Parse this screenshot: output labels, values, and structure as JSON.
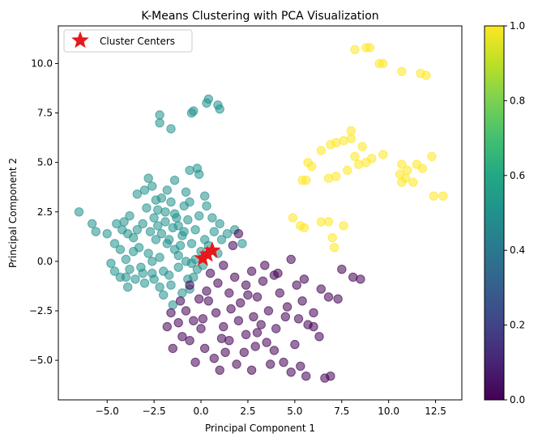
{
  "chart_data": {
    "type": "scatter",
    "title": "K-Means Clustering with PCA Visualization",
    "xlabel": "Principal Component 1",
    "ylabel": "Principal Component 2",
    "xlim": [
      -7.6,
      13.9
    ],
    "ylim": [
      -7.0,
      11.9
    ],
    "xticks": [
      -5.0,
      -2.5,
      0.0,
      2.5,
      5.0,
      7.5,
      10.0,
      12.5
    ],
    "xtick_labels": [
      "−5.0",
      "−2.5",
      "0.0",
      "2.5",
      "5.0",
      "7.5",
      "10.0",
      "12.5"
    ],
    "yticks": [
      -5.0,
      -2.5,
      0.0,
      2.5,
      5.0,
      7.5,
      10.0
    ],
    "ytick_labels": [
      "−5.0",
      "−2.5",
      "0.0",
      "2.5",
      "5.0",
      "7.5",
      "10.0"
    ],
    "grid": false,
    "legend": {
      "placement": "top-left",
      "entries": [
        "Cluster Centers"
      ]
    },
    "colorbar": {
      "colormap": "viridis",
      "range": [
        0.0,
        1.0
      ],
      "ticks": [
        0.0,
        0.2,
        0.4,
        0.6,
        0.8,
        1.0
      ],
      "tick_labels": [
        "0.0",
        "0.2",
        "0.4",
        "0.6",
        "0.8",
        "1.0"
      ]
    },
    "marker_alpha": 0.55,
    "series": [
      {
        "cluster_value": 0.5,
        "color": "#21918c",
        "points": [
          [
            -6.5,
            2.5
          ],
          [
            -5.8,
            1.9
          ],
          [
            -5.6,
            1.5
          ],
          [
            -4.5,
            1.9
          ],
          [
            -4.2,
            1.6
          ],
          [
            -3.9,
            1.4
          ],
          [
            -3.6,
            0.5
          ],
          [
            -3.4,
            3.4
          ],
          [
            -3.0,
            3.6
          ],
          [
            -2.8,
            4.2
          ],
          [
            -2.6,
            3.8
          ],
          [
            -2.3,
            2.6
          ],
          [
            -2.1,
            3.2
          ],
          [
            -1.9,
            2.0
          ],
          [
            -1.6,
            3.0
          ],
          [
            -1.4,
            2.4
          ],
          [
            -1.2,
            1.8
          ],
          [
            -0.8,
            3.5
          ],
          [
            -0.6,
            4.6
          ],
          [
            -0.2,
            4.7
          ],
          [
            -0.1,
            4.4
          ],
          [
            0.2,
            3.3
          ],
          [
            0.3,
            2.8
          ],
          [
            -2.2,
            7.4
          ],
          [
            -2.2,
            7.0
          ],
          [
            -1.6,
            6.7
          ],
          [
            -0.5,
            7.5
          ],
          [
            -0.4,
            7.6
          ],
          [
            0.3,
            8.0
          ],
          [
            0.4,
            8.2
          ],
          [
            0.9,
            7.9
          ],
          [
            1.0,
            7.7
          ],
          [
            -4.6,
            0.9
          ],
          [
            -4.3,
            0.6
          ],
          [
            -4.0,
            0.1
          ],
          [
            -3.8,
            -0.4
          ],
          [
            -4.6,
            -0.5
          ],
          [
            -4.3,
            -0.8
          ],
          [
            -3.9,
            -1.3
          ],
          [
            -3.5,
            -0.9
          ],
          [
            -3.2,
            -0.3
          ],
          [
            -3.0,
            -1.1
          ],
          [
            -2.8,
            0.4
          ],
          [
            -2.6,
            -0.6
          ],
          [
            -2.4,
            1.1
          ],
          [
            -2.2,
            0.2
          ],
          [
            -2.0,
            -0.5
          ],
          [
            -1.8,
            0.9
          ],
          [
            -1.6,
            -1.2
          ],
          [
            -1.4,
            0.6
          ],
          [
            -1.2,
            -0.3
          ],
          [
            -1.0,
            1.3
          ],
          [
            -0.8,
            0.0
          ],
          [
            -0.6,
            -1.4
          ],
          [
            -0.4,
            -0.8
          ],
          [
            -0.2,
            -0.4
          ],
          [
            0.0,
            0.5
          ],
          [
            0.2,
            1.1
          ],
          [
            0.4,
            0.8
          ],
          [
            0.7,
            1.5
          ],
          [
            1.0,
            1.9
          ],
          [
            1.4,
            1.4
          ],
          [
            1.8,
            1.6
          ],
          [
            2.2,
            0.9
          ],
          [
            -3.1,
            1.9
          ],
          [
            -2.9,
            2.7
          ],
          [
            -2.7,
            1.5
          ],
          [
            -2.5,
            2.2
          ],
          [
            -2.3,
            1.8
          ],
          [
            -2.1,
            1.4
          ],
          [
            -1.9,
            2.5
          ],
          [
            -1.7,
            1.1
          ],
          [
            -1.5,
            1.7
          ],
          [
            -1.3,
            2.2
          ],
          [
            -1.1,
            0.8
          ],
          [
            -0.9,
            1.5
          ],
          [
            -0.7,
            2.1
          ],
          [
            -0.5,
            0.9
          ],
          [
            -0.3,
            1.6
          ],
          [
            -0.1,
            2.3
          ],
          [
            -2.0,
            -1.7
          ],
          [
            -1.5,
            -2.2
          ],
          [
            -1.0,
            -1.6
          ],
          [
            -0.7,
            -0.9
          ],
          [
            -3.3,
            0.7
          ],
          [
            -3.6,
            1.2
          ],
          [
            -3.8,
            2.3
          ],
          [
            -4.1,
            2.0
          ],
          [
            -5.0,
            1.4
          ],
          [
            -4.8,
            -0.1
          ],
          [
            -0.9,
            2.8
          ],
          [
            -1.8,
            3.6
          ],
          [
            -2.4,
            3.1
          ],
          [
            0.6,
            2.2
          ],
          [
            -1.2,
            0.3
          ],
          [
            -2.5,
            -0.9
          ],
          [
            -3.1,
            -0.6
          ],
          [
            -0.3,
            0.1
          ],
          [
            0.1,
            -0.2
          ],
          [
            -0.6,
            3.0
          ],
          [
            -1.4,
            4.1
          ],
          [
            -2.6,
            0.0
          ],
          [
            -3.4,
            1.6
          ],
          [
            -4.0,
            -0.8
          ],
          [
            0.9,
            0.4
          ],
          [
            1.1,
            1.1
          ],
          [
            -0.5,
            -0.1
          ],
          [
            -1.7,
            -0.7
          ],
          [
            -2.2,
            -1.3
          ]
        ]
      },
      {
        "cluster_value": 0.0,
        "color": "#440154",
        "points": [
          [
            0.5,
            -0.6
          ],
          [
            0.9,
            -1.1
          ],
          [
            1.2,
            -0.2
          ],
          [
            1.5,
            -1.6
          ],
          [
            1.8,
            -0.8
          ],
          [
            2.1,
            -2.1
          ],
          [
            2.4,
            -1.2
          ],
          [
            2.7,
            -0.5
          ],
          [
            3.0,
            -1.8
          ],
          [
            3.3,
            -1.0
          ],
          [
            3.6,
            -2.5
          ],
          [
            3.9,
            -0.7
          ],
          [
            4.2,
            -1.6
          ],
          [
            4.5,
            -2.8
          ],
          [
            4.8,
            0.1
          ],
          [
            5.1,
            -1.2
          ],
          [
            5.4,
            -2.0
          ],
          [
            5.7,
            -3.2
          ],
          [
            6.0,
            -2.6
          ],
          [
            6.4,
            -1.4
          ],
          [
            6.8,
            -1.8
          ],
          [
            7.3,
            -1.9
          ],
          [
            7.5,
            -0.4
          ],
          [
            8.1,
            -0.8
          ],
          [
            8.5,
            -0.9
          ],
          [
            -1.6,
            -2.6
          ],
          [
            -1.8,
            -3.3
          ],
          [
            -1.5,
            -4.4
          ],
          [
            -1.0,
            -3.8
          ],
          [
            -0.6,
            -4.0
          ],
          [
            -0.3,
            -5.1
          ],
          [
            0.2,
            -4.4
          ],
          [
            0.7,
            -4.9
          ],
          [
            1.0,
            -5.5
          ],
          [
            1.5,
            -4.0
          ],
          [
            1.9,
            -5.2
          ],
          [
            2.3,
            -4.6
          ],
          [
            2.7,
            -5.5
          ],
          [
            3.0,
            -3.6
          ],
          [
            3.5,
            -4.1
          ],
          [
            3.9,
            -4.5
          ],
          [
            4.4,
            -5.1
          ],
          [
            4.8,
            -5.6
          ],
          [
            5.3,
            -5.3
          ],
          [
            5.6,
            -5.8
          ],
          [
            6.3,
            -3.8
          ],
          [
            6.6,
            -5.9
          ],
          [
            6.9,
            -5.8
          ],
          [
            5.0,
            -4.2
          ],
          [
            -0.8,
            -2.5
          ],
          [
            -0.4,
            -3.0
          ],
          [
            0.1,
            -2.9
          ],
          [
            0.4,
            -2.0
          ],
          [
            0.8,
            -2.6
          ],
          [
            1.2,
            -3.3
          ],
          [
            1.6,
            -2.4
          ],
          [
            2.0,
            -3.0
          ],
          [
            2.4,
            -3.7
          ],
          [
            2.8,
            -2.8
          ],
          [
            3.2,
            -3.2
          ],
          [
            4.0,
            -3.4
          ],
          [
            4.6,
            -2.3
          ],
          [
            5.2,
            -2.9
          ],
          [
            6.0,
            -3.3
          ],
          [
            0.3,
            -1.5
          ],
          [
            -0.1,
            -1.9
          ],
          [
            2.0,
            1.4
          ],
          [
            1.7,
            0.8
          ],
          [
            0.0,
            -3.4
          ],
          [
            -1.1,
            -2.0
          ],
          [
            -0.6,
            -1.2
          ],
          [
            1.3,
            -4.6
          ],
          [
            2.5,
            -1.7
          ],
          [
            3.4,
            -0.2
          ],
          [
            4.1,
            -0.6
          ],
          [
            5.5,
            -0.9
          ],
          [
            1.1,
            -3.9
          ],
          [
            2.9,
            -4.3
          ],
          [
            3.7,
            -5.2
          ],
          [
            -1.2,
            -3.1
          ]
        ]
      },
      {
        "cluster_value": 1.0,
        "color": "#fde725",
        "points": [
          [
            7.2,
            4.3
          ],
          [
            7.8,
            4.6
          ],
          [
            8.4,
            4.9
          ],
          [
            8.8,
            5.0
          ],
          [
            9.1,
            5.2
          ],
          [
            10.6,
            4.4
          ],
          [
            10.9,
            4.2
          ],
          [
            11.3,
            4.0
          ],
          [
            11.8,
            4.7
          ],
          [
            12.3,
            5.3
          ],
          [
            12.4,
            3.3
          ],
          [
            12.9,
            3.3
          ],
          [
            8.2,
            10.7
          ],
          [
            8.8,
            10.8
          ],
          [
            9.0,
            10.8
          ],
          [
            9.5,
            10.0
          ],
          [
            9.7,
            10.0
          ],
          [
            10.7,
            9.6
          ],
          [
            11.7,
            9.5
          ],
          [
            12.0,
            9.4
          ],
          [
            8.0,
            6.6
          ],
          [
            8.0,
            6.2
          ],
          [
            7.6,
            6.1
          ],
          [
            7.2,
            6.0
          ],
          [
            6.9,
            5.9
          ],
          [
            6.4,
            5.6
          ],
          [
            5.7,
            5.0
          ],
          [
            5.9,
            4.8
          ],
          [
            6.8,
            4.2
          ],
          [
            5.4,
            4.1
          ],
          [
            5.6,
            4.1
          ],
          [
            4.9,
            2.2
          ],
          [
            5.3,
            1.8
          ],
          [
            5.5,
            1.7
          ],
          [
            6.4,
            2.0
          ],
          [
            6.8,
            2.0
          ],
          [
            7.0,
            1.2
          ],
          [
            7.1,
            0.7
          ],
          [
            7.6,
            1.8
          ],
          [
            8.2,
            5.3
          ],
          [
            8.6,
            5.8
          ],
          [
            9.7,
            5.4
          ],
          [
            10.7,
            4.9
          ],
          [
            11.0,
            4.6
          ],
          [
            11.5,
            4.9
          ],
          [
            10.7,
            4.0
          ]
        ]
      }
    ],
    "centers": [
      [
        0.1,
        0.15
      ],
      [
        0.35,
        0.35
      ],
      [
        0.6,
        0.55
      ]
    ]
  }
}
